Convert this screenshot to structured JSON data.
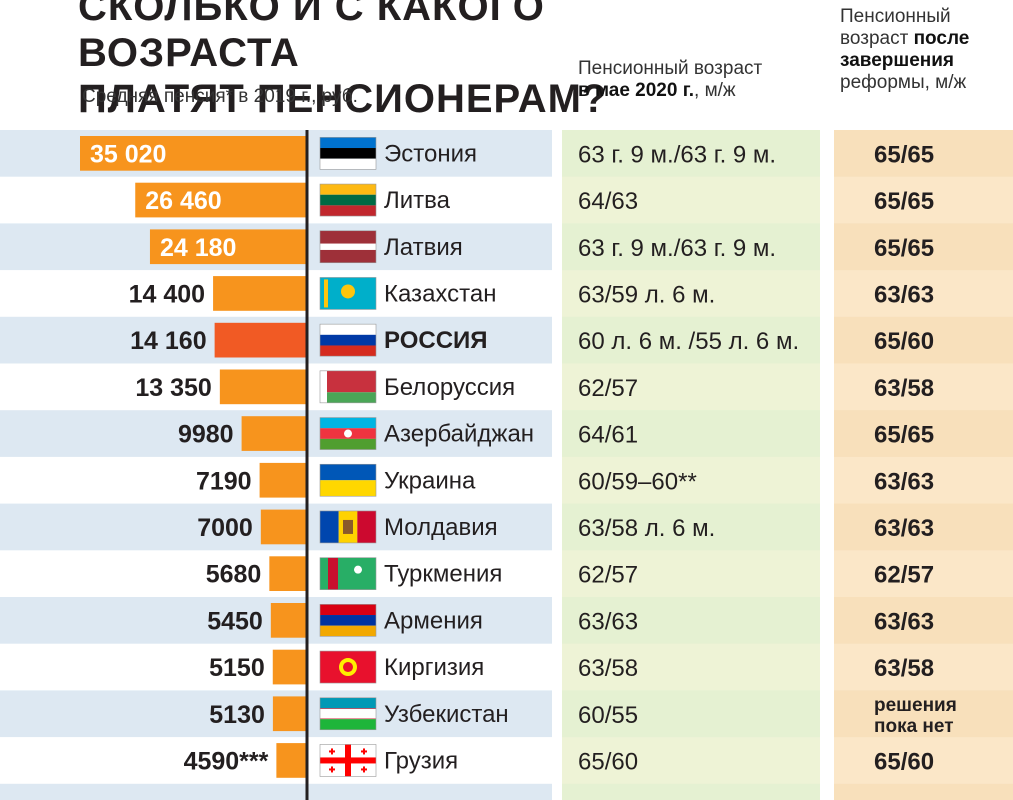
{
  "header": {
    "title_line1": "СКОЛЬКО И С КАКОГО ВОЗРАСТА",
    "title_line2": "ПЛАТЯТ ПЕНСИОНЕРАМ?",
    "subtitle": "Средняя пенсия* в 2019 г., руб.",
    "mid_col_line1": "Пенсионный возраст",
    "mid_col_line2_bold": "в мае 2020 г.",
    "mid_col_line2_rest": ", м/ж",
    "right_col_line1": "Пенсионный",
    "right_col_line2_plain": "возраст ",
    "right_col_line2_bold": "после",
    "right_col_line3_bold": "завершения",
    "right_col_line4": "реформы, м/ж"
  },
  "colors": {
    "bar": "#f7941d",
    "bar_highlight": "#f15a24",
    "band": "#dde8f2",
    "mid_col_bg": "#eef3d6",
    "right_col_bg": "#fbe7c8"
  },
  "chart_data": {
    "type": "bar",
    "orientation": "horizontal",
    "value_unit": "руб.",
    "categories": [
      "Эстония",
      "Литва",
      "Латвия",
      "Казахстан",
      "РОССИЯ",
      "Белоруссия",
      "Азербайджан",
      "Украина",
      "Молдавия",
      "Туркмения",
      "Армения",
      "Киргизия",
      "Узбекистан",
      "Грузия"
    ],
    "values": [
      35020,
      26460,
      24180,
      14400,
      14160,
      13350,
      9980,
      7190,
      7000,
      5680,
      5450,
      5150,
      5130,
      4590
    ],
    "value_labels": [
      "35 020",
      "26 460",
      "24 180",
      "14 400",
      "14 160",
      "13 350",
      "9980",
      "7190",
      "7000",
      "5680",
      "5450",
      "5150",
      "5130",
      "4590***"
    ],
    "highlight": "РОССИЯ",
    "retirement_age_may_2020": [
      "63 г. 9 м./63 г. 9 м.",
      "64/63",
      "63 г. 9 м./63 г. 9 м.",
      "63/59 л. 6 м.",
      "60 л. 6 м. /55 л. 6 м.",
      "62/57",
      "64/61",
      "60/59–60**",
      "63/58 л. 6 м.",
      "62/57",
      "63/63",
      "63/58",
      "60/55",
      "65/60"
    ],
    "retirement_age_after_reform": [
      "65/65",
      "65/65",
      "65/65",
      "63/63",
      "65/60",
      "63/58",
      "65/65",
      "63/63",
      "63/63",
      "62/57",
      "63/63",
      "63/58",
      "решения пока нет",
      "65/60"
    ],
    "flags": [
      "flag-estonia-icon",
      "flag-lithuania-icon",
      "flag-latvia-icon",
      "flag-kazakhstan-icon",
      "flag-russia-icon",
      "flag-belarus-icon",
      "flag-azerbaijan-icon",
      "flag-ukraine-icon",
      "flag-moldova-icon",
      "flag-turkmenistan-icon",
      "flag-armenia-icon",
      "flag-kyrgyzstan-icon",
      "flag-uzbekistan-icon",
      "flag-georgia-icon"
    ]
  }
}
